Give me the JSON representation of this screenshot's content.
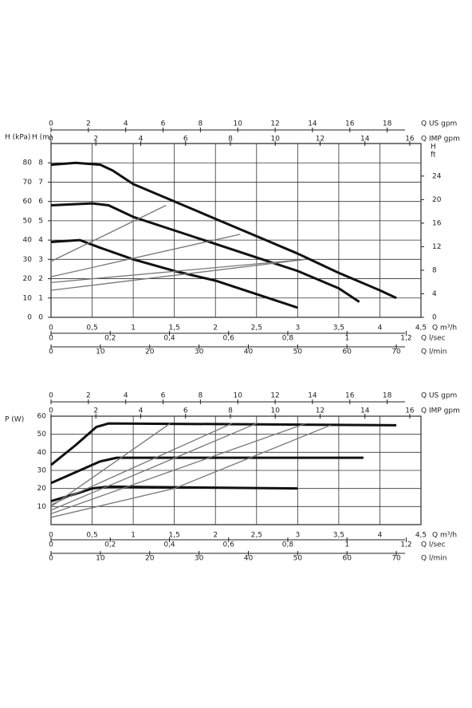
{
  "chart_data": [
    {
      "type": "line",
      "ylabel": "H (kPa)",
      "ylim": [
        0,
        90
      ],
      "yticks": [
        0,
        10,
        20,
        30,
        40,
        50,
        60,
        70,
        80
      ],
      "inner_y_axis": {
        "label": "H (m)",
        "lim": [
          0,
          9
        ],
        "ticks": [
          0,
          1,
          2,
          3,
          4,
          5,
          6,
          7,
          8
        ]
      },
      "y2label": "H",
      "y2unit": "ft",
      "y2lim": [
        0,
        29.53
      ],
      "y2ticks": [
        0,
        4,
        8,
        12,
        16,
        20,
        24
      ],
      "xlabel": "Q m³/h",
      "xlim": [
        0,
        4.5
      ],
      "xticks": [
        0,
        {
          "value": 0.5,
          "label": "0,5"
        },
        1,
        {
          "value": 1.5,
          "label": "1,5"
        },
        2,
        {
          "value": 2.5,
          "label": "2,5"
        },
        3,
        {
          "value": 3.5,
          "label": "3,5"
        },
        4,
        {
          "value": 4.5,
          "label": "4,5"
        }
      ],
      "extra_x_axes": [
        {
          "label": "Q US gpm",
          "lim": [
            0,
            19.81
          ],
          "ticks": [
            0,
            2,
            4,
            6,
            8,
            10,
            12,
            14,
            16,
            18
          ]
        },
        {
          "label": "Q IMP gpm",
          "lim": [
            0,
            16.5
          ],
          "ticks": [
            0,
            2,
            4,
            6,
            8,
            10,
            12,
            14,
            16
          ]
        },
        {
          "label": "Q l/sec",
          "lim": [
            0,
            1.25
          ],
          "ticks": [
            0,
            {
              "value": 0.2,
              "label": "0,2"
            },
            {
              "value": 0.4,
              "label": "0,4"
            },
            {
              "value": 0.6,
              "label": "0,6"
            },
            {
              "value": 0.8,
              "label": "0,8"
            },
            1,
            {
              "value": 1.2,
              "label": "1,2"
            }
          ]
        },
        {
          "label": "Q l/min",
          "lim": [
            0,
            75
          ],
          "ticks": [
            0,
            10,
            20,
            30,
            40,
            50,
            60,
            70
          ]
        }
      ],
      "grid": true,
      "series": [
        {
          "color": "#111111",
          "width": 3,
          "x": [
            0,
            0.3,
            0.6,
            0.75,
            1,
            1.5,
            2,
            2.5,
            3,
            3.5,
            4,
            4.2
          ],
          "values": [
            79,
            80,
            79,
            76,
            69,
            60,
            51,
            42,
            33,
            23,
            14,
            10
          ]
        },
        {
          "color": "#111111",
          "width": 3,
          "x": [
            0,
            0.5,
            0.7,
            1,
            1.5,
            2,
            2.5,
            3,
            3.5,
            3.75
          ],
          "values": [
            58,
            59,
            58,
            52,
            45,
            38,
            31,
            24,
            15,
            8
          ]
        },
        {
          "color": "#111111",
          "width": 3,
          "x": [
            0,
            0.35,
            0.6,
            1,
            1.5,
            2,
            2.5,
            3
          ],
          "values": [
            39,
            40,
            36,
            30,
            24,
            19,
            12,
            5
          ]
        },
        {
          "color": "#777777",
          "width": 1.3,
          "x": [
            0,
            1.4
          ],
          "values": [
            29,
            58
          ]
        },
        {
          "color": "#777777",
          "width": 1.3,
          "x": [
            0,
            2.3
          ],
          "values": [
            21,
            43
          ]
        },
        {
          "color": "#777777",
          "width": 1.3,
          "x": [
            0,
            3.1
          ],
          "values": [
            14,
            30
          ]
        },
        {
          "color": "#777777",
          "width": 1.3,
          "x": [
            0,
            3.1
          ],
          "values": [
            18,
            30
          ]
        }
      ]
    },
    {
      "type": "line",
      "ylabel": "P (W)",
      "ylim": [
        0,
        60
      ],
      "yticks": [
        10,
        20,
        30,
        40,
        50,
        60
      ],
      "xlabel": "Q m³/h",
      "xlim": [
        0,
        4.5
      ],
      "xticks": [
        0,
        {
          "value": 0.5,
          "label": "0,5"
        },
        1,
        {
          "value": 1.5,
          "label": "1,5"
        },
        2,
        {
          "value": 2.5,
          "label": "2,5"
        },
        3,
        {
          "value": 3.5,
          "label": "3,5"
        },
        4,
        {
          "value": 4.5,
          "label": "4,5"
        }
      ],
      "extra_x_axes": [
        {
          "label": "Q US gpm",
          "lim": [
            0,
            19.81
          ],
          "ticks": [
            0,
            2,
            4,
            6,
            8,
            10,
            12,
            14,
            16,
            18
          ]
        },
        {
          "label": "Q IMP gpm",
          "lim": [
            0,
            16.5
          ],
          "ticks": [
            0,
            2,
            4,
            6,
            8,
            10,
            12,
            14,
            16
          ]
        },
        {
          "label": "Q l/sec",
          "lim": [
            0,
            1.25
          ],
          "ticks": [
            0,
            {
              "value": 0.2,
              "label": "0,2"
            },
            {
              "value": 0.4,
              "label": "0,4"
            },
            {
              "value": 0.6,
              "label": "0,6"
            },
            {
              "value": 0.8,
              "label": "0,8"
            },
            1,
            {
              "value": 1.2,
              "label": "1,2"
            }
          ]
        },
        {
          "label": "Q l/min",
          "lim": [
            0,
            75
          ],
          "ticks": [
            0,
            10,
            20,
            30,
            40,
            50,
            60,
            70
          ]
        }
      ],
      "grid": true,
      "series": [
        {
          "color": "#111111",
          "width": 3,
          "x": [
            0,
            0.3,
            0.55,
            0.7,
            4.2
          ],
          "values": [
            33,
            44,
            54,
            56,
            55
          ]
        },
        {
          "color": "#111111",
          "width": 3,
          "x": [
            0,
            0.3,
            0.6,
            0.8,
            3.8
          ],
          "values": [
            23,
            29,
            35,
            37,
            37
          ]
        },
        {
          "color": "#111111",
          "width": 3,
          "x": [
            0,
            0.3,
            0.5,
            0.7,
            3
          ],
          "values": [
            13,
            17,
            20,
            21,
            20
          ]
        },
        {
          "color": "#777777",
          "width": 1.3,
          "x": [
            0,
            1.45
          ],
          "values": [
            10,
            56
          ]
        },
        {
          "color": "#777777",
          "width": 1.3,
          "x": [
            0,
            2.5
          ],
          "values": [
            8,
            56
          ]
        },
        {
          "color": "#777777",
          "width": 1.3,
          "x": [
            0,
            3.1
          ],
          "values": [
            6,
            56
          ]
        },
        {
          "color": "#777777",
          "width": 1.3,
          "x": [
            0,
            1.5,
            3.4
          ],
          "values": [
            4,
            20,
            55
          ]
        },
        {
          "color": "#777777",
          "width": 1.3,
          "x": [
            0,
            2.2
          ],
          "values": [
            11,
            56
          ]
        }
      ]
    }
  ]
}
